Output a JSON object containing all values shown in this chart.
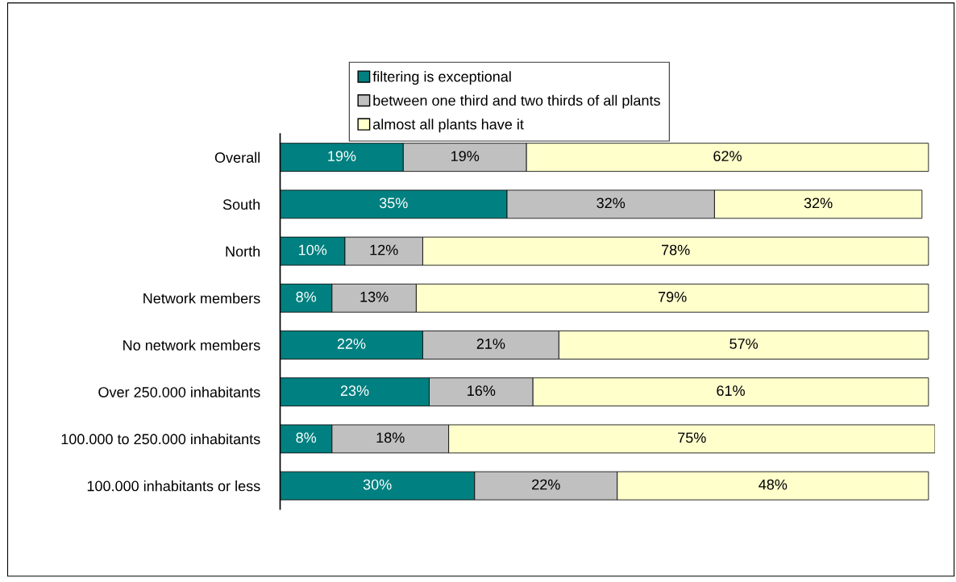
{
  "chart_data": {
    "type": "bar",
    "orientation": "horizontal",
    "stacked": true,
    "legend": "top",
    "grid": false,
    "tick_labels": "y",
    "categories": [
      "Overall",
      "South",
      "North",
      "Network members",
      "No network members",
      "Over 250.000 inhabitants",
      "100.000 to 250.000 inhabitants",
      "100.000 inhabitants or less"
    ],
    "series": [
      {
        "name": "filtering is exceptional",
        "color": "#008080",
        "values": [
          19,
          35,
          10,
          8,
          22,
          23,
          8,
          30
        ],
        "value_labels": [
          "19%",
          "35%",
          "10%",
          "8%",
          "22%",
          "23%",
          "8%",
          "30%"
        ]
      },
      {
        "name": "between one third and two thirds of all plants",
        "color": "#c0c0c0",
        "values": [
          19,
          32,
          12,
          13,
          21,
          16,
          18,
          22
        ],
        "value_labels": [
          "19%",
          "32%",
          "12%",
          "13%",
          "21%",
          "16%",
          "18%",
          "22%"
        ]
      },
      {
        "name": "almost all plants have it",
        "color": "#ffffcc",
        "values": [
          62,
          32,
          78,
          79,
          57,
          61,
          75,
          48
        ],
        "value_labels": [
          "62%",
          "32%",
          "78%",
          "79%",
          "57%",
          "61%",
          "75%",
          "48%"
        ]
      }
    ]
  }
}
